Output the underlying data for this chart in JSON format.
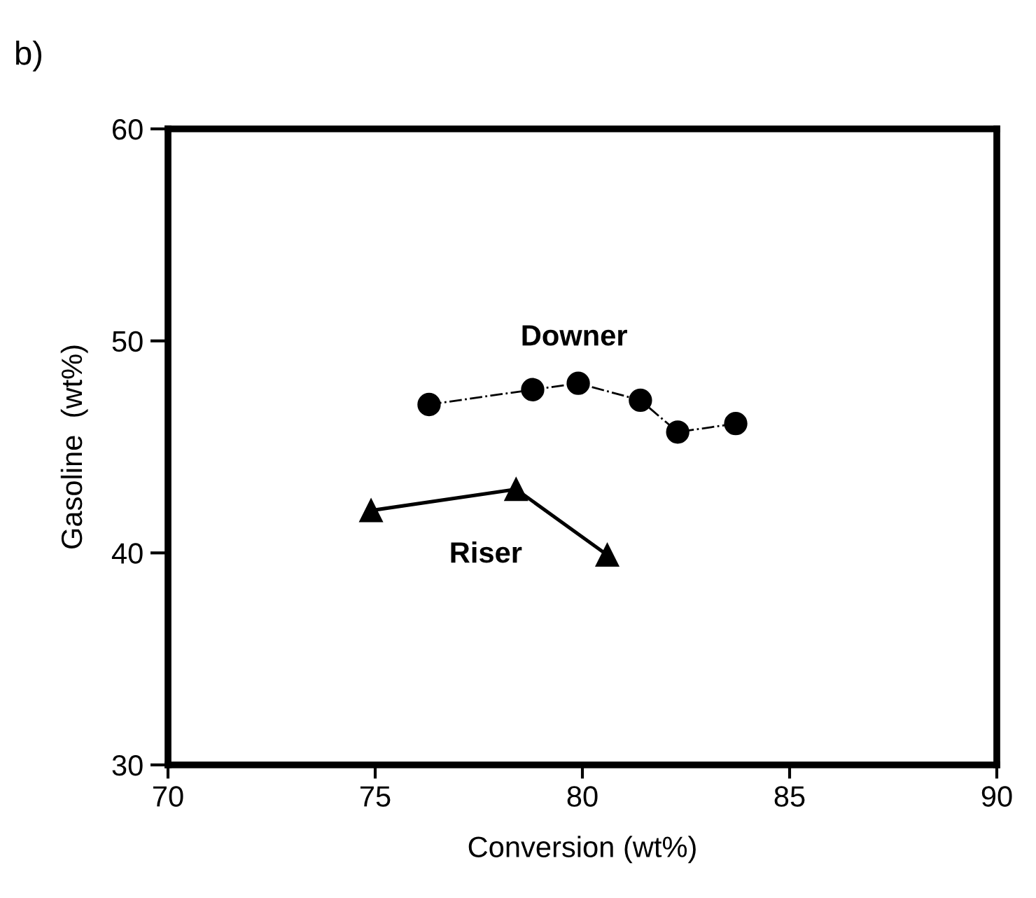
{
  "chart_data": {
    "type": "line",
    "title": "b)",
    "xlabel": "Conversion (wt%)",
    "ylabel": "Gasoline  (wt%)",
    "xlim": [
      70,
      90
    ],
    "xticks": [
      70,
      75,
      80,
      85,
      90
    ],
    "ylim": [
      30,
      60
    ],
    "yticks": [
      30,
      40,
      50,
      60
    ],
    "grid": false,
    "legend": false,
    "series": [
      {
        "name": "Downer",
        "color": "#000000",
        "marker": "circle",
        "line_style": "dashdot",
        "x": [
          76.3,
          78.8,
          79.9,
          81.4,
          82.3,
          83.7
        ],
        "values": [
          47.0,
          47.7,
          48.0,
          47.2,
          45.7,
          46.1
        ]
      },
      {
        "name": "Riser",
        "color": "#000000",
        "marker": "triangle",
        "line_style": "solid",
        "x": [
          74.9,
          78.4,
          80.6
        ],
        "values": [
          42.0,
          43.0,
          39.9
        ]
      }
    ]
  }
}
